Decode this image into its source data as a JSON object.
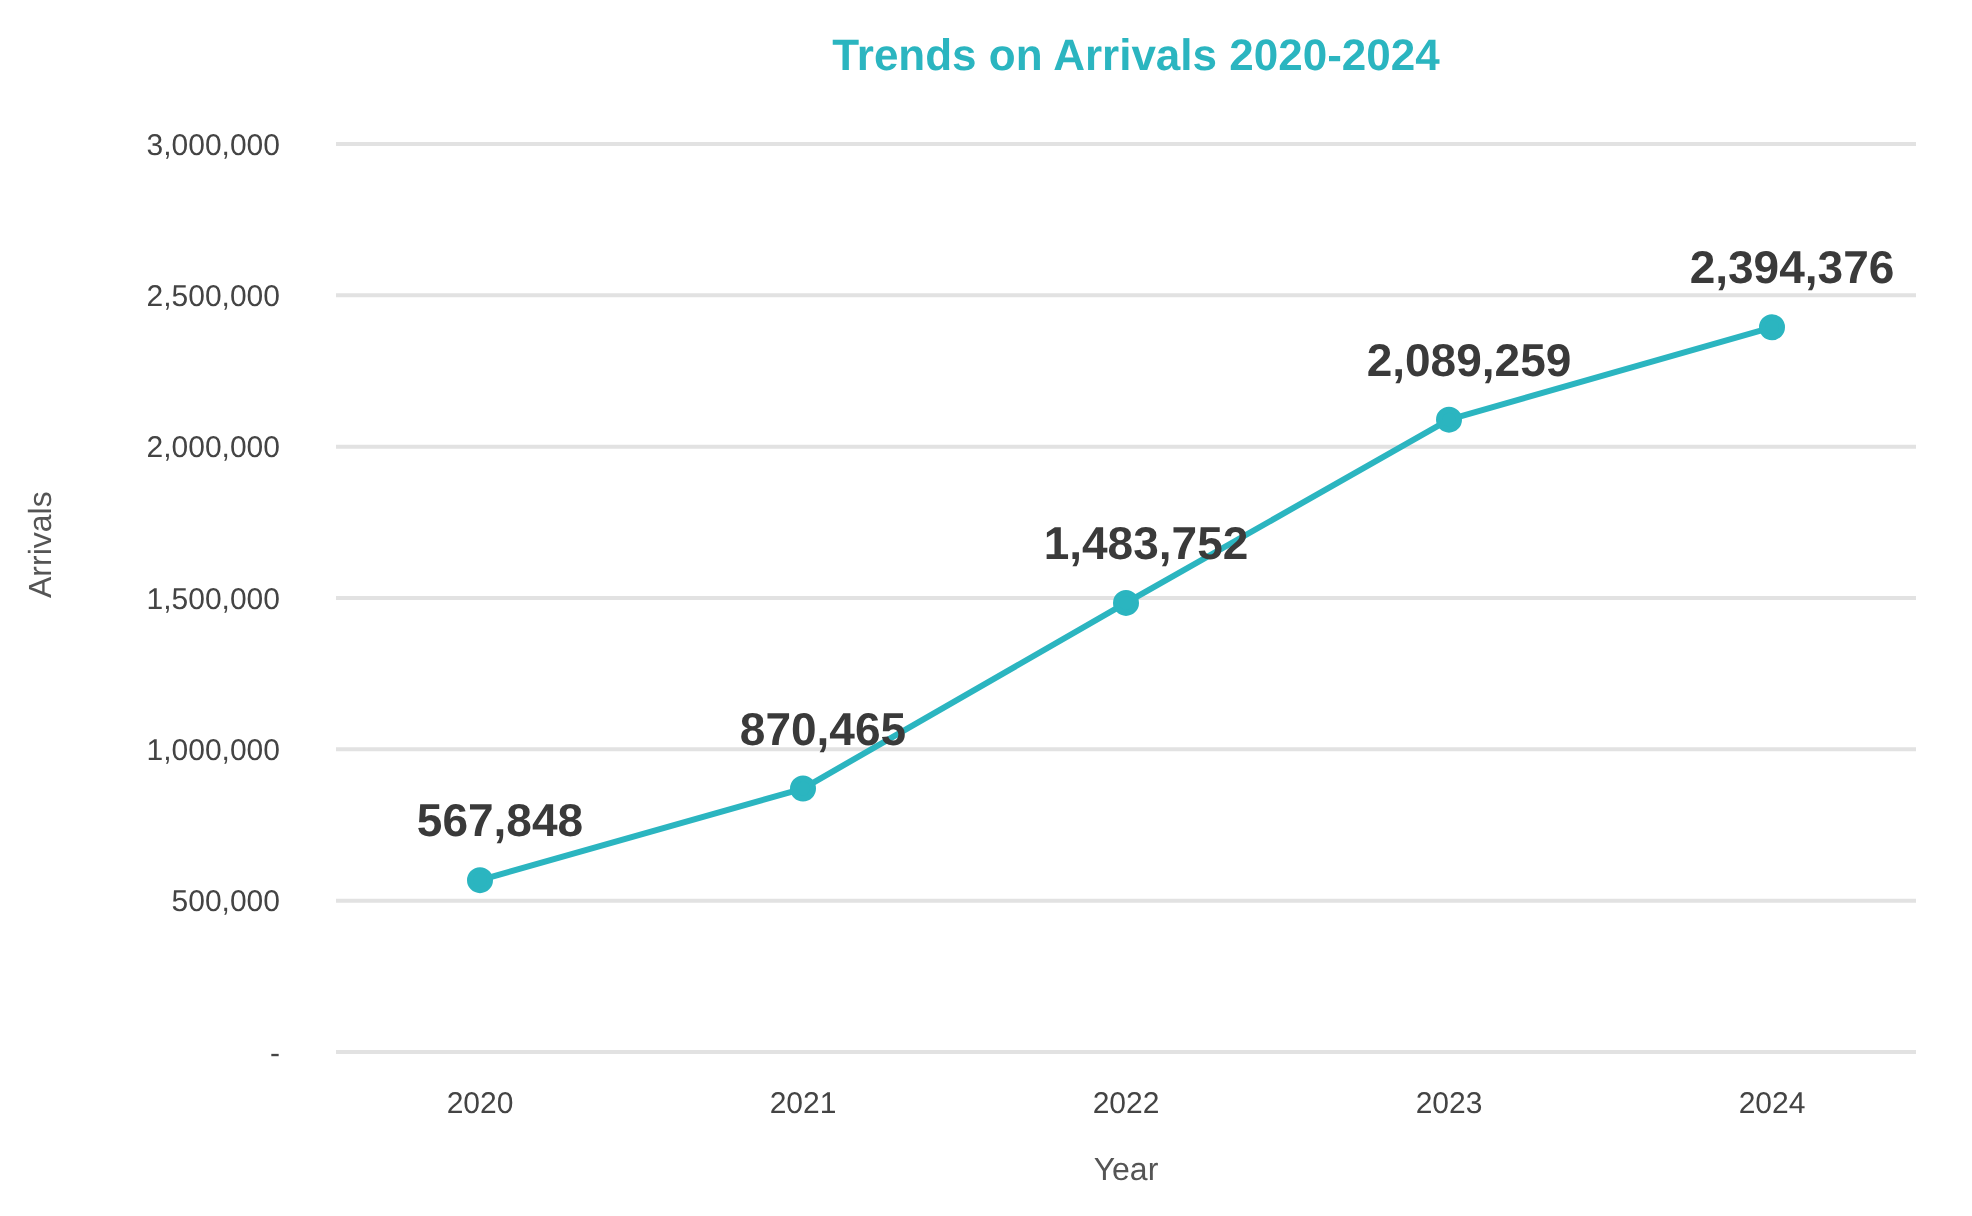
{
  "chart_data": {
    "type": "line",
    "title": "Trends on Arrivals 2020-2024",
    "xlabel": "Year",
    "ylabel": "Arrivals",
    "categories": [
      "2020",
      "2021",
      "2022",
      "2023",
      "2024"
    ],
    "series": [
      {
        "color": "#2bb5c0",
        "values": [
          567848,
          870465,
          1483752,
          2089259,
          2394376
        ],
        "value_labels": [
          "567,848",
          "870,465",
          "1,483,752",
          "2,089,259",
          "2,394,376"
        ]
      }
    ],
    "ylim": [
      0,
      3000000
    ],
    "yticks": [
      {
        "value": 0,
        "label": "-"
      },
      {
        "value": 500000,
        "label": "500,000"
      },
      {
        "value": 1000000,
        "label": "1,000,000"
      },
      {
        "value": 1500000,
        "label": "1,500,000"
      },
      {
        "value": 2000000,
        "label": "2,000,000"
      },
      {
        "value": 2500000,
        "label": "2,500,000"
      },
      {
        "value": 3000000,
        "label": "3,000,000"
      }
    ],
    "grid": "y",
    "marker": "circle",
    "line_style": "solid"
  }
}
